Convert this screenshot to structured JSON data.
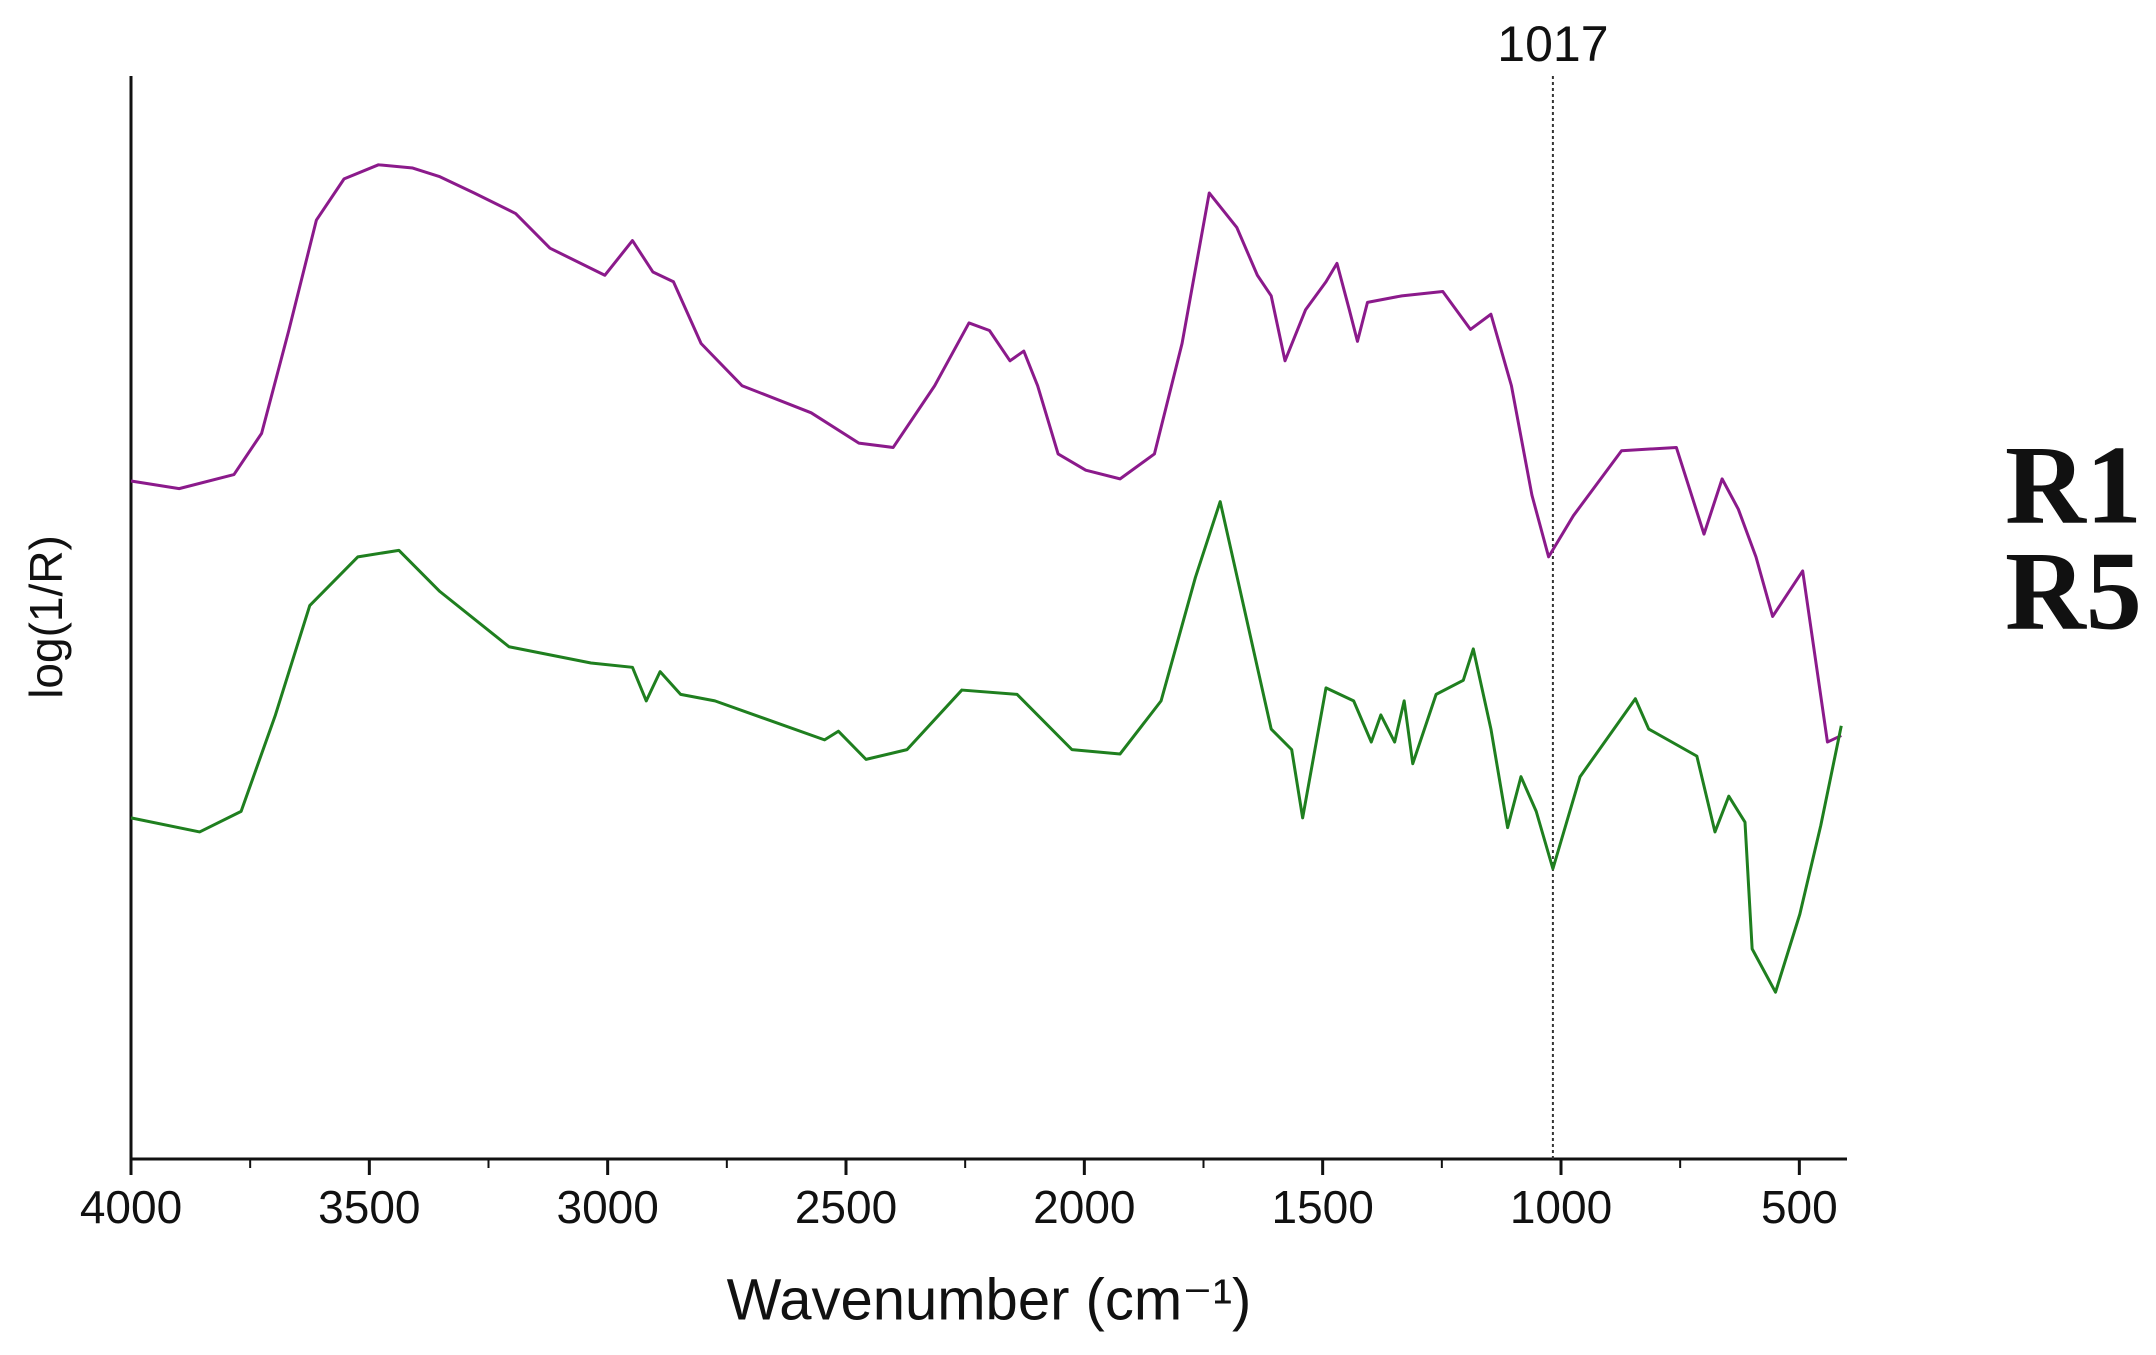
{
  "chart_data": {
    "type": "line",
    "xlabel": "Wavenumber (cm⁻¹)",
    "ylabel": "log(1/R)",
    "xlim": [
      4000,
      400
    ],
    "ylim": [
      0,
      100
    ],
    "xticks": [
      4000,
      3500,
      3000,
      2500,
      2000,
      1500,
      1000,
      500
    ],
    "xminorticks": [
      3750,
      3250,
      2750,
      2250,
      1750,
      1250,
      750
    ],
    "vline": 1017,
    "series": [
      {
        "name": "R1",
        "color": "#8b1a8b",
        "x": [
          4000,
          3899,
          3784,
          3726,
          3669,
          3611,
          3553,
          3481,
          3409,
          3352,
          3280,
          3193,
          3121,
          3006,
          2948,
          2905,
          2862,
          2804,
          2718,
          2573,
          2473,
          2401,
          2314,
          2242,
          2199,
          2156,
          2127,
          2098,
          2055,
          1997,
          1925,
          1853,
          1795,
          1738,
          1680,
          1637,
          1608,
          1579,
          1536,
          1493,
          1470,
          1444,
          1427,
          1406,
          1334,
          1248,
          1190,
          1147,
          1104,
          1061,
          1026,
          974,
          873,
          758,
          700,
          662,
          628,
          591,
          556,
          493,
          441,
          412
        ],
        "values": [
          62.6,
          61.9,
          63.2,
          67.0,
          76.5,
          86.7,
          90.5,
          91.8,
          91.5,
          90.7,
          89.2,
          87.3,
          84.1,
          81.6,
          84.8,
          81.9,
          81.0,
          75.3,
          71.4,
          68.9,
          66.1,
          65.7,
          71.4,
          77.2,
          76.5,
          73.7,
          74.6,
          71.4,
          65.1,
          63.6,
          62.8,
          65.1,
          75.3,
          89.2,
          86.0,
          81.6,
          79.7,
          73.7,
          78.4,
          81.0,
          82.7,
          78.4,
          75.5,
          79.1,
          79.7,
          80.1,
          76.6,
          78.0,
          71.4,
          61.3,
          55.6,
          59.4,
          65.4,
          65.7,
          57.7,
          62.8,
          60.0,
          55.6,
          50.1,
          54.3,
          38.5,
          39.1
        ]
      },
      {
        "name": "R5",
        "color": "#1f7f1f",
        "x": [
          4000,
          3856,
          3769,
          3697,
          3625,
          3524,
          3438,
          3352,
          3207,
          3035,
          2948,
          2919,
          2890,
          2847,
          2775,
          2545,
          2516,
          2458,
          2372,
          2257,
          2141,
          2026,
          1925,
          1839,
          1767,
          1715,
          1666,
          1608,
          1565,
          1542,
          1493,
          1435,
          1398,
          1378,
          1349,
          1329,
          1311,
          1262,
          1205,
          1184,
          1147,
          1112,
          1084,
          1052,
          1017,
          960,
          844,
          816,
          715,
          677,
          648,
          614,
          599,
          550,
          499,
          455,
          412
        ],
        "values": [
          31.5,
          30.2,
          32.1,
          41.0,
          51.1,
          55.6,
          56.2,
          52.4,
          47.3,
          45.8,
          45.4,
          42.3,
          45.0,
          42.9,
          42.3,
          38.7,
          39.5,
          36.9,
          37.8,
          43.3,
          42.9,
          37.8,
          37.4,
          42.3,
          53.7,
          60.7,
          51.1,
          39.7,
          37.8,
          31.5,
          43.5,
          42.3,
          38.5,
          41.0,
          38.5,
          42.3,
          36.5,
          42.9,
          44.2,
          47.1,
          39.7,
          30.6,
          35.3,
          32.1,
          26.8,
          35.3,
          42.5,
          39.7,
          37.2,
          30.2,
          33.5,
          31.1,
          19.4,
          15.4,
          22.6,
          30.8,
          40.0
        ]
      }
    ]
  }
}
